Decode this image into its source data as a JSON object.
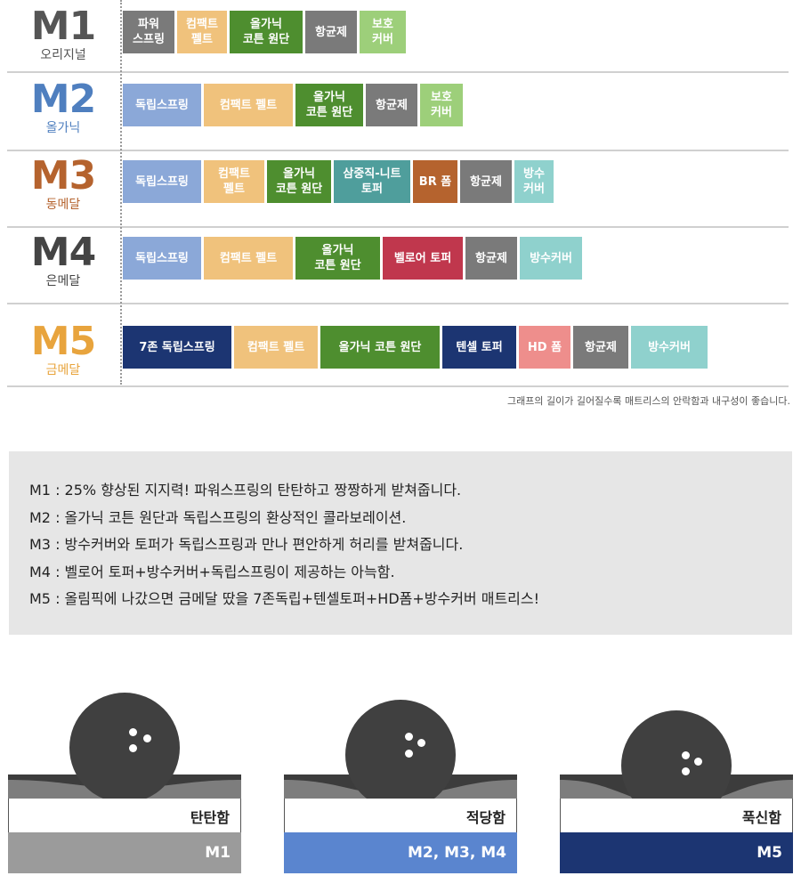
{
  "models": [
    {
      "code": "M1",
      "sub": "오리지널",
      "color": "#555555",
      "bars": [
        {
          "text": "파워\n스프링",
          "color": "#7a7a7a",
          "w": 58
        },
        {
          "text": "컴팩트\n펠트",
          "color": "#f0c27c",
          "w": 56
        },
        {
          "text": "올가닉\n코튼 원단",
          "color": "#4e8e2f",
          "w": 82
        },
        {
          "text": "항균제",
          "color": "#7a7a7a",
          "w": 58
        },
        {
          "text": "보호\n커버",
          "color": "#9dcf7a",
          "w": 52
        }
      ]
    },
    {
      "code": "M2",
      "sub": "올가닉",
      "color": "#4f7fbf",
      "bars": [
        {
          "text": "독립스프링",
          "color": "#8ba8d8",
          "w": 88
        },
        {
          "text": "컴팩트 펠트",
          "color": "#f0c27c",
          "w": 100
        },
        {
          "text": "올가닉\n코튼 원단",
          "color": "#4e8e2f",
          "w": 76
        },
        {
          "text": "항균제",
          "color": "#7a7a7a",
          "w": 58
        },
        {
          "text": "보호\n커버",
          "color": "#9dcf7a",
          "w": 48
        }
      ]
    },
    {
      "code": "M3",
      "sub": "동메달",
      "color": "#b5632e",
      "bars": [
        {
          "text": "독립스프링",
          "color": "#8ba8d8",
          "w": 88
        },
        {
          "text": "컴팩트\n펠트",
          "color": "#f0c27c",
          "w": 68
        },
        {
          "text": "올가닉\n코튼 원단",
          "color": "#4e8e2f",
          "w": 72
        },
        {
          "text": "삼중직-니트\n토퍼",
          "color": "#4f9e9c",
          "w": 86
        },
        {
          "text": "BR 폼",
          "color": "#b5632e",
          "w": 50
        },
        {
          "text": "항균제",
          "color": "#7a7a7a",
          "w": 58
        },
        {
          "text": "방수\n커버",
          "color": "#8fd1cd",
          "w": 44
        }
      ]
    },
    {
      "code": "M4",
      "sub": "은메달",
      "color": "#444444",
      "bars": [
        {
          "text": "독립스프링",
          "color": "#8ba8d8",
          "w": 88
        },
        {
          "text": "컴팩트 펠트",
          "color": "#f0c27c",
          "w": 100
        },
        {
          "text": "올가닉\n코튼 원단",
          "color": "#4e8e2f",
          "w": 95
        },
        {
          "text": "벨로어 토퍼",
          "color": "#c0374d",
          "w": 90
        },
        {
          "text": "항균제",
          "color": "#7a7a7a",
          "w": 58
        },
        {
          "text": "방수커버",
          "color": "#8fd1cd",
          "w": 70
        }
      ]
    },
    {
      "code": "M5",
      "sub": "금메달",
      "color": "#e8a43d",
      "bars": [
        {
          "text": "7존 독립스프링",
          "color": "#1c3572",
          "w": 122
        },
        {
          "text": "컴팩트 펠트",
          "color": "#f0c27c",
          "w": 94
        },
        {
          "text": "올가닉 코튼 원단",
          "color": "#4e8e2f",
          "w": 134
        },
        {
          "text": "텐셀 토퍼",
          "color": "#1c3572",
          "w": 83
        },
        {
          "text": "HD 폼",
          "color": "#ee8e8c",
          "w": 58
        },
        {
          "text": "항균제",
          "color": "#7a7a7a",
          "w": 62
        },
        {
          "text": "방수커버",
          "color": "#8fd1cd",
          "w": 86
        }
      ]
    }
  ],
  "note": "그래프의 길이가 길어질수록 매트리스의 안락함과 내구성이 좋습니다.",
  "descriptions": [
    "M1 : 25% 향상된 지지력! 파워스프링의 탄탄하고 짱짱하게 받쳐줍니다.",
    "M2 : 올가닉 코튼 원단과 독립스프링의 환상적인 콜라보레이션.",
    "M3 : 방수커버와 토퍼가 독립스프링과 만나 편안하게 허리를 받쳐줍니다.",
    "M4 : 벨로어 토퍼+방수커버+독립스프링이 제공하는 아늑함.",
    "M5 : 올림픽에 나갔으면 금메달 땄을 7존독립+텐셀토퍼+HD폼+방수커버 매트리스!"
  ],
  "firmness": [
    {
      "label": "탄탄함",
      "models": "M1",
      "color": "#9b9b9b",
      "sink": 6
    },
    {
      "label": "적당함",
      "models": "M2, M3, M4",
      "color": "#5a85cf",
      "sink": 14
    },
    {
      "label": "푹신함",
      "models": "M5",
      "color": "#1c3572",
      "sink": 26
    }
  ]
}
